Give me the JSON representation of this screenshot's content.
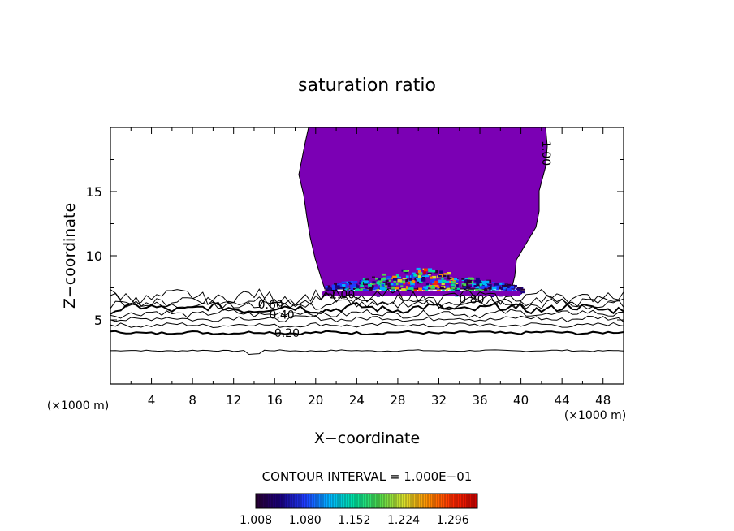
{
  "chart_data": {
    "type": "contour",
    "title": "saturation ratio",
    "xlabel": "X−coordinate",
    "ylabel": "Z−coordinate",
    "x_unit_left": "(×1000 m)",
    "x_unit_right": "(×1000 m)",
    "xlim": [
      0,
      50
    ],
    "ylim": [
      0,
      20
    ],
    "x_ticks": [
      4,
      8,
      12,
      16,
      20,
      24,
      28,
      32,
      36,
      40,
      44,
      48
    ],
    "y_ticks": [
      5,
      10,
      15
    ],
    "contour_levels": [
      0.2,
      0.3,
      0.4,
      0.5,
      0.6,
      0.7,
      0.8,
      0.9,
      1.0
    ],
    "contour_labels": [
      {
        "text": "0.20",
        "x": 17.2,
        "z": 4.0
      },
      {
        "text": "0.40",
        "x": 16.7,
        "z": 5.4
      },
      {
        "text": "0.60",
        "x": 15.6,
        "z": 6.2
      },
      {
        "text": "0.80",
        "x": 35.2,
        "z": 6.6
      },
      {
        "text": "1.00",
        "x": 22.6,
        "z": 7.0
      },
      {
        "text": "1.00",
        "x": 42.5,
        "z": 18.0
      }
    ],
    "saturated_region": {
      "x_range": [
        20,
        44
      ],
      "z_range": [
        7.0,
        20.0
      ],
      "color": "#7b00b4"
    },
    "contour_interval_text": "CONTOUR INTERVAL = 1.000E−01",
    "colorbar": {
      "labels": [
        "1.008",
        "1.080",
        "1.152",
        "1.224",
        "1.296"
      ],
      "min": 1.008,
      "max": 1.332,
      "colors": [
        "#2a0033",
        "#1a0080",
        "#1e3cff",
        "#00b4ff",
        "#00e0a0",
        "#4cd84c",
        "#d8e02c",
        "#ff8c00",
        "#ff2a00",
        "#c80000"
      ]
    }
  }
}
